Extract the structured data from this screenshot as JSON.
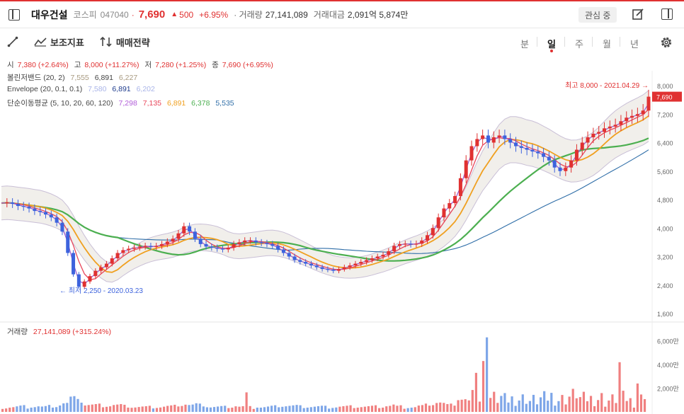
{
  "header": {
    "stock_name": "대우건설",
    "market": "코스피",
    "code": "047040",
    "dot": "·",
    "price": "7,690",
    "change_arrow": "▲",
    "change": "500",
    "change_pct": "+6.95%",
    "volume_label": "· 거래량",
    "volume": "27,141,089",
    "amount_label": "거래대금",
    "amount": "2,091억 5,874만",
    "watch_button": "관심 중"
  },
  "toolbar": {
    "indicator_label": "보조지표",
    "strategy_label": "매매전략",
    "periods": [
      "분",
      "일",
      "주",
      "월",
      "년"
    ],
    "active_period": "일"
  },
  "legend": {
    "ohlc": {
      "open_label": "시",
      "open": "7,380 (+2.64%)",
      "high_label": "고",
      "high": "8,000 (+11.27%)",
      "low_label": "저",
      "low": "7,280 (+1.25%)",
      "close_label": "종",
      "close": "7,690 (+6.95%)"
    },
    "bollinger": {
      "label": "볼린저밴드 (20, 2)",
      "values": [
        "7,555",
        "6,891",
        "6,227"
      ]
    },
    "envelope": {
      "label": "Envelope (20, 0.1, 0.1)",
      "values": [
        "7,580",
        "6,891",
        "6,202"
      ]
    },
    "sma": {
      "label": "단순이동평균 (5, 10, 20, 60, 120)",
      "values": [
        "7,298",
        "7,135",
        "6,891",
        "6,378",
        "5,535"
      ]
    },
    "volume": {
      "label": "거래량",
      "value": "27,141,089 (+315.24%)"
    }
  },
  "colors": {
    "up": "#e03131",
    "down": "#3d63dd",
    "sma5": "#9b59d0",
    "sma10": "#e8455a",
    "sma20": "#f0a020",
    "sma60": "#4caf50",
    "sma120": "#2f6ea8"
  },
  "chart_data": {
    "type": "line",
    "price_axis_ticks": [
      "8,000",
      "7,200",
      "6,400",
      "5,600",
      "4,800",
      "4,000",
      "3,200",
      "2,400",
      "1,600"
    ],
    "price_axis_values": [
      8000,
      7200,
      6400,
      5600,
      4800,
      4000,
      3200,
      2400,
      1600
    ],
    "current_price_tag": "7,690",
    "max_annotation": "최고 8,000 - 2021.04.29 →",
    "min_annotation": "← 최저 2,250 - 2020.03.23",
    "volume_axis_ticks": [
      "6,000만",
      "4,000만",
      "2,000만"
    ],
    "volume_axis_values": [
      6000,
      4000,
      2000
    ],
    "close_path": [
      4700,
      4720,
      4680,
      4620,
      4600,
      4550,
      4480,
      4450,
      4380,
      4300,
      4150,
      3900,
      3300,
      2700,
      2350,
      2500,
      2650,
      2800,
      2900,
      3000,
      3150,
      3300,
      3380,
      3420,
      3450,
      3480,
      3500,
      3470,
      3500,
      3550,
      3620,
      3700,
      3850,
      4050,
      3900,
      3700,
      3550,
      3480,
      3450,
      3420,
      3400,
      3450,
      3550,
      3600,
      3650,
      3650,
      3600,
      3580,
      3550,
      3500,
      3400,
      3300,
      3200,
      3100,
      3050,
      3000,
      2950,
      2900,
      2850,
      2830,
      2800,
      2850,
      2900,
      2950,
      3000,
      3050,
      3100,
      3150,
      3200,
      3250,
      3350,
      3500,
      3550,
      3560,
      3540,
      3560,
      3650,
      3800,
      4000,
      4300,
      4550,
      4700,
      4900,
      5400,
      5900,
      6300,
      6500,
      6600,
      6400,
      6550,
      6600,
      6500,
      6400,
      6300,
      6250,
      6200,
      6150,
      6100,
      6000,
      5900,
      5700,
      5600,
      5700,
      5900,
      6200,
      6400,
      6550,
      6650,
      6700,
      6800,
      6850,
      6900,
      7000,
      7100,
      7150,
      7200,
      7300,
      7690
    ]
  }
}
